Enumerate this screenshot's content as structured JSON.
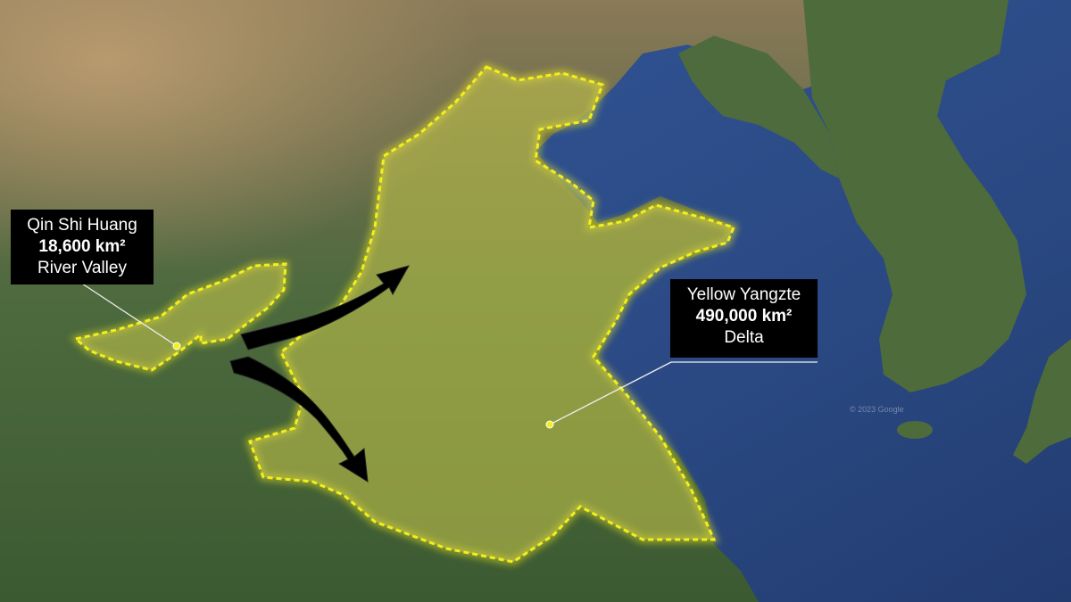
{
  "map": {
    "regions": [
      {
        "id": "qin",
        "callout": {
          "name": "Qin Shi Huang",
          "area": "18,600 km²",
          "type": "River Valley"
        }
      },
      {
        "id": "yellow",
        "callout": {
          "name": "Yellow Yangzte",
          "area": "490,000 km²",
          "type": "Delta"
        }
      }
    ],
    "colors": {
      "sea": "#2b4a85",
      "land": "#47623a",
      "region_fill": "#c9c84a",
      "region_outline": "#f3ef1c",
      "arrow": "#000000",
      "callout_bg": "#000000",
      "callout_text": "#ffffff"
    },
    "watermark": "© 2023 Google"
  }
}
